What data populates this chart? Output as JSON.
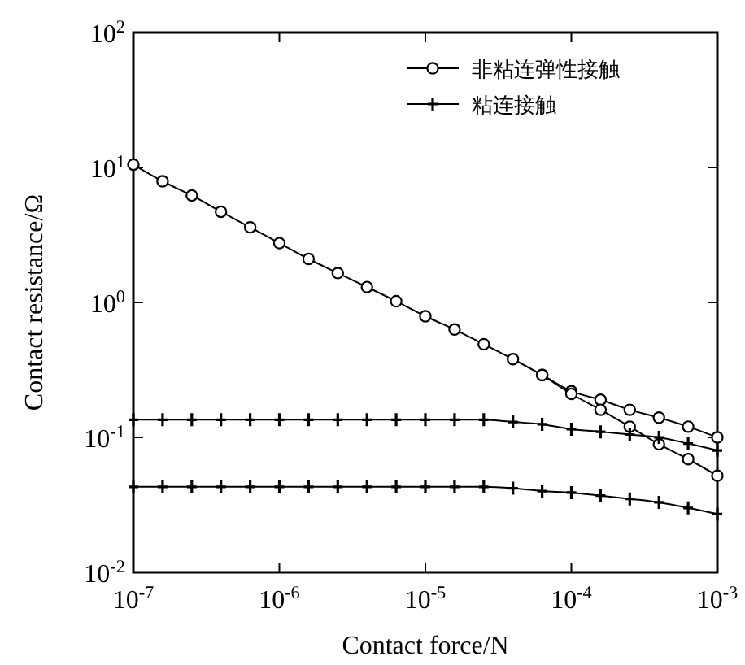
{
  "chart_data": {
    "type": "line",
    "xlabel": "Contact force/N",
    "ylabel": "Contact resistance/Ω",
    "log": "xy",
    "xlim": [
      1e-07,
      0.001
    ],
    "ylim": [
      0.01,
      100
    ],
    "xticks": [
      {
        "value": 1e-07,
        "label": "10$^{-7}$"
      },
      {
        "value": 1e-06,
        "label": "10$^{-6}$"
      },
      {
        "value": 1e-05,
        "label": "10$^{-5}$"
      },
      {
        "value": 0.0001,
        "label": "10$^{-4}$"
      },
      {
        "value": 0.001,
        "label": "10$^{-3}$"
      }
    ],
    "yticks": [
      {
        "value": 0.01,
        "label": "10$^{-2}$"
      },
      {
        "value": 0.1,
        "label": "10$^{-1}$"
      },
      {
        "value": 1,
        "label": "10$^{0}$"
      },
      {
        "value": 10,
        "label": "10$^{1}$"
      },
      {
        "value": 100,
        "label": "10$^{2}$"
      }
    ],
    "grid": false,
    "legend": "top right",
    "line_style": "solid",
    "x": [
      1e-07,
      1.585e-07,
      2.512e-07,
      3.981e-07,
      6.31e-07,
      1e-06,
      1.585e-06,
      2.512e-06,
      3.981e-06,
      6.31e-06,
      1e-05,
      1.585e-05,
      2.512e-05,
      3.981e-05,
      6.31e-05,
      0.0001,
      0.0001585,
      0.0002512,
      0.0003981,
      0.000631,
      0.001
    ],
    "series": [
      {
        "name": "非粘连弹性接触",
        "color": "#000000",
        "marker": "circle",
        "values": [
          10.5,
          7.9,
          6.2,
          4.7,
          3.6,
          2.75,
          2.1,
          1.65,
          1.3,
          1.02,
          0.79,
          0.63,
          0.49,
          0.38,
          0.29,
          0.22,
          0.19,
          0.16,
          0.14,
          0.12,
          0.1
        ]
      },
      {
        "color": "#000000",
        "marker": "circle",
        "values": [
          null,
          null,
          null,
          null,
          null,
          null,
          null,
          null,
          null,
          null,
          null,
          null,
          null,
          null,
          0.29,
          0.21,
          0.16,
          0.12,
          0.089,
          0.069,
          0.052
        ]
      },
      {
        "name": "粘连接触",
        "color": "#000000",
        "marker": "cross",
        "values": [
          0.135,
          0.135,
          0.135,
          0.135,
          0.135,
          0.135,
          0.135,
          0.135,
          0.135,
          0.135,
          0.135,
          0.135,
          0.135,
          0.13,
          0.125,
          0.115,
          0.11,
          0.105,
          0.1,
          0.09,
          0.08
        ]
      },
      {
        "color": "#000000",
        "marker": "cross",
        "values": [
          0.043,
          0.043,
          0.043,
          0.043,
          0.043,
          0.043,
          0.043,
          0.043,
          0.043,
          0.043,
          0.043,
          0.043,
          0.043,
          0.042,
          0.04,
          0.039,
          0.037,
          0.035,
          0.033,
          0.03,
          0.027
        ]
      }
    ]
  }
}
